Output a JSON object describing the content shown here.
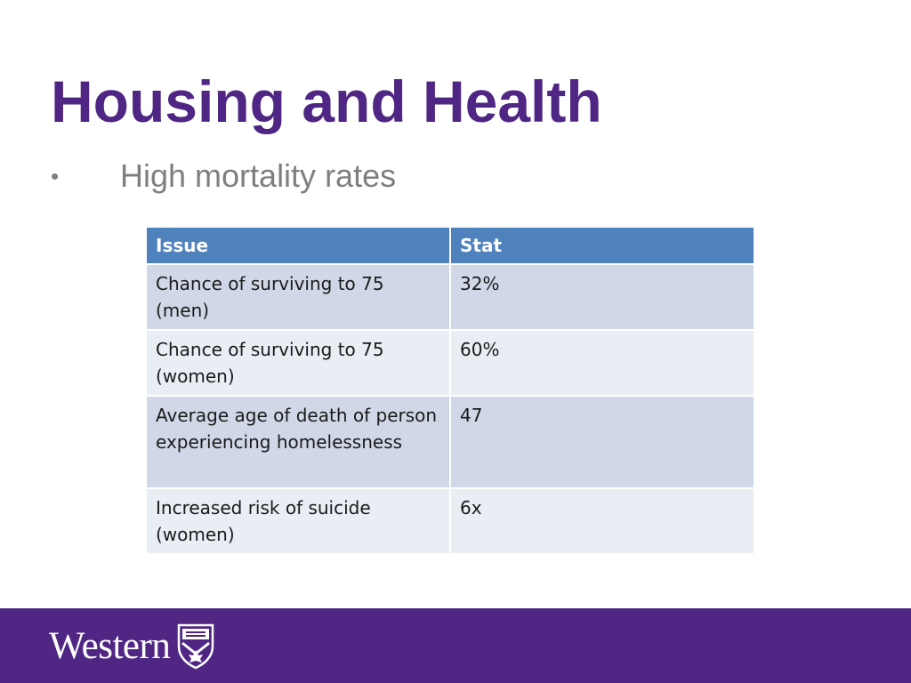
{
  "slide": {
    "title": "Housing and Health",
    "bullet_marker": "•",
    "bullet_text": "High mortality rates"
  },
  "table": {
    "headers": [
      "Issue",
      "Stat"
    ],
    "rows": [
      {
        "issue": "Chance of surviving to 75 (men)",
        "stat": "32%"
      },
      {
        "issue": "Chance of surviving to 75 (women)",
        "stat": "60%"
      },
      {
        "issue": "Average age of death of person experiencing homelessness",
        "stat": "47"
      },
      {
        "issue": "Increased risk of suicide (women)",
        "stat": "6x"
      }
    ]
  },
  "footer": {
    "wordmark": "Western",
    "crest_icon": "western-crest-icon"
  },
  "colors": {
    "brand_purple": "#4f2683",
    "header_blue": "#4f81bd",
    "row_dark": "#d0d8e8",
    "row_light": "#e9edf4",
    "bullet_gray": "#7f7f7f"
  }
}
